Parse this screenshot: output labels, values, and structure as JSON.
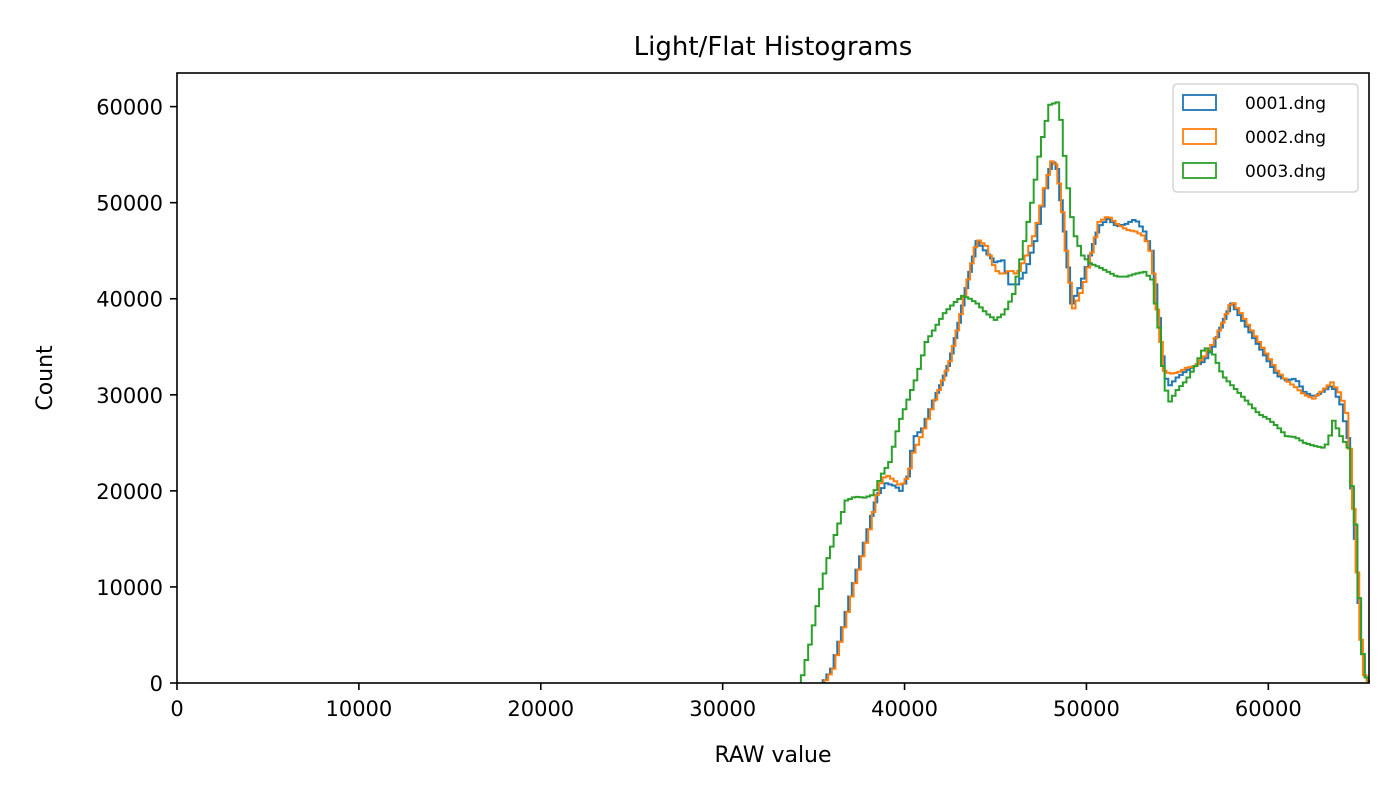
{
  "chart_data": {
    "type": "step-histogram",
    "title": "Light/Flat Histograms",
    "xlabel": "RAW value",
    "ylabel": "Count",
    "xlim": [
      0,
      65535
    ],
    "ylim": [
      0,
      63500
    ],
    "xticks": [
      0,
      10000,
      20000,
      30000,
      40000,
      50000,
      60000
    ],
    "xtick_labels": [
      "0",
      "10000",
      "20000",
      "30000",
      "40000",
      "50000",
      "60000"
    ],
    "yticks": [
      0,
      10000,
      20000,
      30000,
      40000,
      50000,
      60000
    ],
    "ytick_labels": [
      "0",
      "10000",
      "20000",
      "30000",
      "40000",
      "50000",
      "60000"
    ],
    "grid": false,
    "legend_position": "top-right",
    "series": [
      {
        "name": "0001.dng",
        "color": "#1f77b4",
        "points": [
          [
            35500,
            0
          ],
          [
            36000,
            1500
          ],
          [
            36500,
            5000
          ],
          [
            37000,
            9000
          ],
          [
            37500,
            12500
          ],
          [
            38000,
            16000
          ],
          [
            38500,
            19500
          ],
          [
            39000,
            20800
          ],
          [
            39500,
            20500
          ],
          [
            39800,
            20000
          ],
          [
            40200,
            21500
          ],
          [
            40500,
            25500
          ],
          [
            41000,
            26500
          ],
          [
            41500,
            29000
          ],
          [
            42000,
            31000
          ],
          [
            42500,
            33500
          ],
          [
            43000,
            37500
          ],
          [
            43500,
            42000
          ],
          [
            44000,
            46000
          ],
          [
            44500,
            44800
          ],
          [
            45000,
            43800
          ],
          [
            45400,
            44000
          ],
          [
            45800,
            41500
          ],
          [
            46200,
            41500
          ],
          [
            46700,
            43000
          ],
          [
            47200,
            46000
          ],
          [
            47700,
            50500
          ],
          [
            48100,
            54500
          ],
          [
            48400,
            53500
          ],
          [
            48800,
            47000
          ],
          [
            49200,
            39500
          ],
          [
            49700,
            41500
          ],
          [
            50200,
            44500
          ],
          [
            50700,
            47500
          ],
          [
            51200,
            48300
          ],
          [
            51700,
            47500
          ],
          [
            52200,
            47800
          ],
          [
            52700,
            48300
          ],
          [
            53200,
            47000
          ],
          [
            53600,
            45000
          ],
          [
            54000,
            38000
          ],
          [
            54300,
            32000
          ],
          [
            54600,
            31000
          ],
          [
            55000,
            31800
          ],
          [
            55500,
            32500
          ],
          [
            56000,
            33000
          ],
          [
            56500,
            33500
          ],
          [
            57000,
            35000
          ],
          [
            57500,
            37500
          ],
          [
            58000,
            39500
          ],
          [
            58500,
            38000
          ],
          [
            59000,
            36500
          ],
          [
            59500,
            35000
          ],
          [
            60000,
            33500
          ],
          [
            60500,
            32000
          ],
          [
            61000,
            31500
          ],
          [
            61500,
            31700
          ],
          [
            62000,
            30300
          ],
          [
            62500,
            29800
          ],
          [
            63000,
            30300
          ],
          [
            63500,
            31000
          ],
          [
            64000,
            29000
          ],
          [
            64400,
            25500
          ],
          [
            64800,
            15000
          ],
          [
            65100,
            5000
          ],
          [
            65300,
            1000
          ],
          [
            65535,
            0
          ]
        ]
      },
      {
        "name": "0002.dng",
        "color": "#ff7f0e",
        "points": [
          [
            35600,
            0
          ],
          [
            36100,
            1500
          ],
          [
            36600,
            5000
          ],
          [
            37100,
            9000
          ],
          [
            37600,
            12500
          ],
          [
            38100,
            16000
          ],
          [
            38600,
            20500
          ],
          [
            39000,
            21700
          ],
          [
            39500,
            21000
          ],
          [
            39800,
            20500
          ],
          [
            40200,
            21500
          ],
          [
            40500,
            24000
          ],
          [
            41000,
            26000
          ],
          [
            41500,
            28500
          ],
          [
            42000,
            31000
          ],
          [
            42500,
            33500
          ],
          [
            43000,
            37500
          ],
          [
            43500,
            42000
          ],
          [
            44000,
            46200
          ],
          [
            44500,
            45500
          ],
          [
            45000,
            43000
          ],
          [
            45400,
            42500
          ],
          [
            45800,
            43000
          ],
          [
            46200,
            42500
          ],
          [
            46700,
            44500
          ],
          [
            47200,
            47000
          ],
          [
            47700,
            51500
          ],
          [
            48200,
            55000
          ],
          [
            48600,
            51000
          ],
          [
            49000,
            43000
          ],
          [
            49300,
            39000
          ],
          [
            49800,
            41000
          ],
          [
            50200,
            44000
          ],
          [
            50700,
            48000
          ],
          [
            51200,
            48600
          ],
          [
            51700,
            47800
          ],
          [
            52200,
            47200
          ],
          [
            52700,
            47000
          ],
          [
            53200,
            46500
          ],
          [
            53600,
            44500
          ],
          [
            54000,
            37000
          ],
          [
            54300,
            32500
          ],
          [
            54600,
            32200
          ],
          [
            55000,
            32300
          ],
          [
            55500,
            32800
          ],
          [
            56000,
            33000
          ],
          [
            56500,
            34000
          ],
          [
            57000,
            35500
          ],
          [
            57500,
            37500
          ],
          [
            58000,
            39800
          ],
          [
            58500,
            38500
          ],
          [
            59000,
            37000
          ],
          [
            59500,
            35500
          ],
          [
            60000,
            34000
          ],
          [
            60500,
            32500
          ],
          [
            61000,
            31500
          ],
          [
            61500,
            30800
          ],
          [
            62000,
            30000
          ],
          [
            62500,
            29600
          ],
          [
            63000,
            30500
          ],
          [
            63500,
            31300
          ],
          [
            64000,
            30000
          ],
          [
            64400,
            27500
          ],
          [
            64800,
            15000
          ],
          [
            65100,
            4500
          ],
          [
            65300,
            800
          ],
          [
            65535,
            0
          ]
        ]
      },
      {
        "name": "0003.dng",
        "color": "#2ca02c",
        "points": [
          [
            34300,
            0
          ],
          [
            34800,
            4000
          ],
          [
            35300,
            9000
          ],
          [
            35800,
            13000
          ],
          [
            36300,
            16000
          ],
          [
            36800,
            19000
          ],
          [
            37300,
            19400
          ],
          [
            37800,
            19300
          ],
          [
            38300,
            19600
          ],
          [
            38700,
            21500
          ],
          [
            39200,
            23000
          ],
          [
            39700,
            27000
          ],
          [
            40200,
            29500
          ],
          [
            40700,
            32000
          ],
          [
            41200,
            35500
          ],
          [
            41700,
            37000
          ],
          [
            42200,
            38500
          ],
          [
            42700,
            39500
          ],
          [
            43200,
            40300
          ],
          [
            43600,
            40000
          ],
          [
            44000,
            39500
          ],
          [
            44500,
            38500
          ],
          [
            45000,
            37800
          ],
          [
            45500,
            38500
          ],
          [
            46000,
            40500
          ],
          [
            46500,
            45000
          ],
          [
            47000,
            50000
          ],
          [
            47500,
            56000
          ],
          [
            48000,
            60200
          ],
          [
            48500,
            60500
          ],
          [
            48900,
            53000
          ],
          [
            49300,
            47000
          ],
          [
            49800,
            44500
          ],
          [
            50200,
            43700
          ],
          [
            50700,
            43300
          ],
          [
            51200,
            42800
          ],
          [
            51700,
            42300
          ],
          [
            52200,
            42300
          ],
          [
            52700,
            42600
          ],
          [
            53200,
            42800
          ],
          [
            53600,
            42000
          ],
          [
            54000,
            37000
          ],
          [
            54300,
            31000
          ],
          [
            54600,
            29300
          ],
          [
            55000,
            30500
          ],
          [
            55500,
            31500
          ],
          [
            56000,
            33000
          ],
          [
            56500,
            35000
          ],
          [
            57000,
            34200
          ],
          [
            57500,
            32000
          ],
          [
            58000,
            31000
          ],
          [
            58500,
            30000
          ],
          [
            59000,
            29000
          ],
          [
            59500,
            28000
          ],
          [
            60000,
            27500
          ],
          [
            60500,
            26700
          ],
          [
            61000,
            25700
          ],
          [
            61500,
            25600
          ],
          [
            62000,
            25000
          ],
          [
            62500,
            24700
          ],
          [
            63000,
            24500
          ],
          [
            63300,
            25000
          ],
          [
            63600,
            27300
          ],
          [
            64000,
            25700
          ],
          [
            64400,
            24500
          ],
          [
            64800,
            16500
          ],
          [
            65100,
            5000
          ],
          [
            65300,
            1000
          ],
          [
            65535,
            0
          ]
        ]
      }
    ]
  }
}
